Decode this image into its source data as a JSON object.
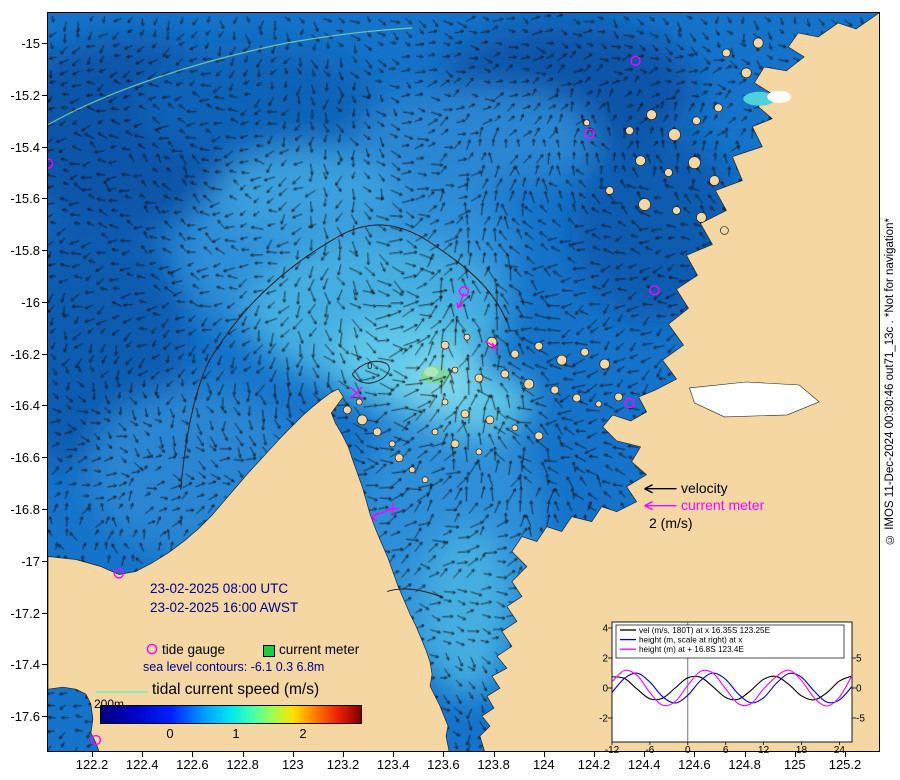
{
  "figure": {
    "timestamp_utc": "23-02-2025 08:00 UTC",
    "timestamp_awst": "23-02-2025 16:00 AWST",
    "marker_legend": {
      "tide_gauge": "tide gauge",
      "current_meter": "current meter"
    },
    "sea_level_note": "sea level contours: -6.1 0.3 6.8m",
    "colorbar_title": "tidal current speed (m/s)",
    "colorbar_ticks": [
      "0",
      "1",
      "2"
    ],
    "depth_contour_label": "200m",
    "contour_zero_label": "0",
    "vector_legend": {
      "velocity_label": "velocity",
      "current_meter_label": "current meter",
      "scale_label": "2 (m/s)"
    },
    "axes": {
      "lat_ticks": [
        "-15",
        "-15.2",
        "-15.4",
        "-15.6",
        "-15.8",
        "-16",
        "-16.2",
        "-16.4",
        "-16.6",
        "-16.8",
        "-17",
        "-17.2",
        "-17.4",
        "-17.6"
      ],
      "lon_ticks": [
        "122.2",
        "122.4",
        "122.6",
        "122.8",
        "123",
        "123.2",
        "123.4",
        "123.6",
        "123.8",
        "124",
        "124.2",
        "124.4",
        "124.6",
        "124.8",
        "125",
        "125.2"
      ]
    },
    "watermark": "© IMOS 11-Dec-2024 00:30:46 out71_13c . *Not for navigation*"
  },
  "colors": {
    "ocean_base": "#1573c9",
    "land": "#f5d7a4",
    "magenta": "#ff00ff",
    "meter_green": "#1fcc3f",
    "depth_green": "#8ce8a8"
  },
  "chart_data": {
    "type": "line",
    "x_label_units": "hours",
    "x_hours": [
      -12,
      -10,
      -8,
      -6,
      -4,
      -2,
      0,
      2,
      4,
      6,
      8,
      10,
      12,
      14,
      16,
      18,
      20,
      22,
      24,
      26
    ],
    "series": [
      {
        "name": "vel (m/s, 180T) at x 16.35S 123.25E",
        "color": "#000000",
        "axis": "left",
        "values": [
          0.75,
          0.63,
          -0.08,
          -0.72,
          -0.68,
          0.0,
          0.68,
          0.72,
          0.08,
          -0.63,
          -0.75,
          -0.16,
          0.58,
          0.77,
          0.24,
          -0.52,
          -0.79,
          -0.32,
          0.46,
          0.8
        ]
      },
      {
        "name": "height (m, scale at right) at x",
        "color": "#0000cc",
        "axis": "right",
        "values": [
          -0.75,
          1.63,
          2.47,
          0.99,
          -1.43,
          -2.5,
          -1.21,
          1.21,
          2.5,
          1.43,
          -0.99,
          -2.47,
          -1.63,
          0.75,
          2.42,
          1.81,
          -0.5,
          -2.35,
          -1.99,
          0.25
        ]
      },
      {
        "name": "height (m) at + 16.8S 123.4E",
        "color": "#ff00ff",
        "axis": "right",
        "values": [
          1.04,
          2.94,
          2.07,
          -0.75,
          -2.86,
          -2.27,
          0.45,
          2.76,
          2.46,
          -0.15,
          -2.62,
          -2.63,
          -0.15,
          1.89,
          2.98,
          1.26,
          -1.62,
          -3.0,
          -1.53,
          2.07
        ]
      }
    ],
    "x_ticks": [
      -12,
      -6,
      0,
      6,
      12,
      18,
      24
    ],
    "left_axis": {
      "ticks": [
        4,
        2,
        0,
        -2
      ],
      "range": [
        -3.6,
        4.4
      ]
    },
    "right_axis": {
      "ticks": [
        5,
        0,
        -5
      ],
      "scale_vs_left": 2.5
    },
    "legend_position": "top",
    "now_line_x": 0
  }
}
